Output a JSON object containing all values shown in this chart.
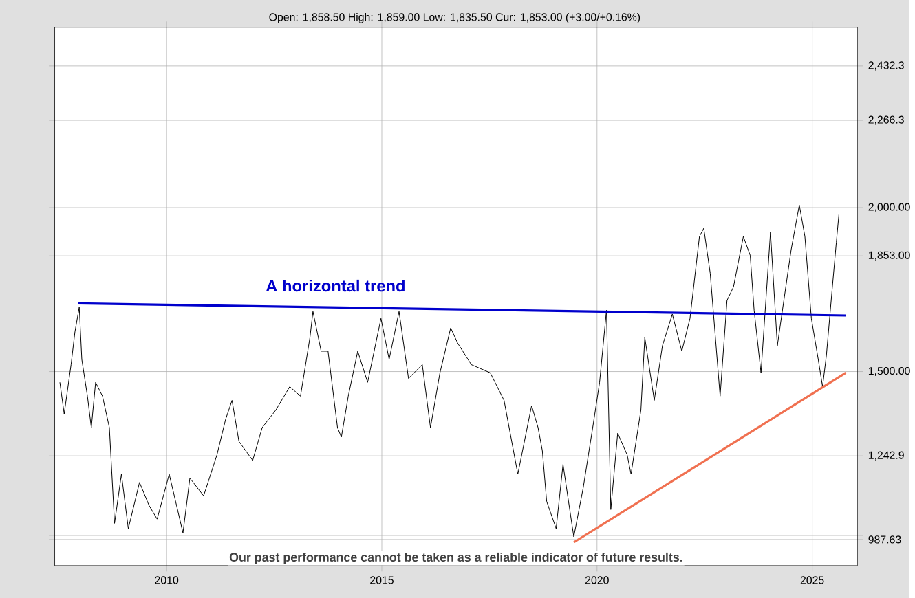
{
  "chart_data": {
    "type": "line",
    "subtitle": "Open: 1,858.50 High: 1,859.00 Low: 1,835.50 Cur: 1,853.00 (+3.00/+0.16%)",
    "xlim": [
      2007.4,
      2026.05
    ],
    "xticks": [
      2010,
      2015,
      2020,
      2025
    ],
    "ylim": [
      908,
      2550
    ],
    "yticks": [
      {
        "value": 987.63,
        "label": "987.63"
      },
      {
        "value": 1000,
        "label": null
      },
      {
        "value": 1242.9,
        "label": "1,242.9"
      },
      {
        "value": 1500,
        "label": "1,500.00"
      },
      {
        "value": 1853,
        "label": "1,853.00"
      },
      {
        "value": 2000,
        "label": "2,000.00"
      },
      {
        "value": 2266.3,
        "label": "2,266.3"
      },
      {
        "value": 2432.3,
        "label": "2,432.3"
      }
    ],
    "grid": true,
    "series": [
      {
        "color": "#000000",
        "x": [
          2007.52,
          2007.62,
          2007.78,
          2007.87,
          2007.97,
          2008.03,
          2008.16,
          2008.25,
          2008.35,
          2008.51,
          2008.67,
          2008.79,
          2008.95,
          2009.11,
          2009.37,
          2009.59,
          2009.78,
          2010.06,
          2010.38,
          2010.54,
          2010.86,
          2011.17,
          2011.37,
          2011.52,
          2011.68,
          2012.0,
          2012.22,
          2012.54,
          2012.86,
          2013.11,
          2013.33,
          2013.4,
          2013.59,
          2013.75,
          2013.97,
          2014.06,
          2014.22,
          2014.44,
          2014.67,
          2014.98,
          2015.17,
          2015.4,
          2015.62,
          2015.94,
          2016.13,
          2016.35,
          2016.6,
          2016.76,
          2017.08,
          2017.52,
          2017.84,
          2018.16,
          2018.48,
          2018.63,
          2018.73,
          2018.83,
          2019.05,
          2019.21,
          2019.46,
          2019.68,
          2019.9,
          2020.06,
          2020.22,
          2020.32,
          2020.48,
          2020.7,
          2020.79,
          2021.02,
          2021.11,
          2021.33,
          2021.52,
          2021.75,
          2021.97,
          2022.16,
          2022.38,
          2022.48,
          2022.63,
          2022.86,
          2023.02,
          2023.17,
          2023.4,
          2023.56,
          2023.65,
          2023.81,
          2024.03,
          2024.19,
          2024.51,
          2024.7,
          2024.83,
          2024.98,
          2025.14,
          2025.24,
          2025.33,
          2025.46,
          2025.56,
          2025.62
        ],
        "values": [
          1467,
          1371,
          1521,
          1621,
          1696,
          1537,
          1425,
          1329,
          1467,
          1425,
          1329,
          1037,
          1187,
          1021,
          1162,
          1092,
          1050,
          1187,
          1008,
          1175,
          1121,
          1246,
          1354,
          1412,
          1287,
          1229,
          1329,
          1383,
          1454,
          1425,
          1604,
          1683,
          1562,
          1562,
          1329,
          1300,
          1425,
          1562,
          1467,
          1662,
          1537,
          1683,
          1479,
          1521,
          1329,
          1496,
          1633,
          1587,
          1521,
          1496,
          1412,
          1187,
          1396,
          1329,
          1258,
          1104,
          1021,
          1217,
          996,
          1146,
          1329,
          1467,
          1687,
          1079,
          1312,
          1246,
          1187,
          1383,
          1604,
          1412,
          1579,
          1675,
          1562,
          1662,
          1912,
          1937,
          1800,
          1425,
          1717,
          1758,
          1912,
          1854,
          1687,
          1496,
          1925,
          1579,
          1871,
          2008,
          1912,
          1662,
          1537,
          1454,
          1550,
          1746,
          1894,
          1979
        ]
      },
      {
        "type": "line",
        "color": "#0000cc",
        "x": [
          2007.94,
          2025.78
        ],
        "values": [
          1708,
          1671
        ]
      },
      {
        "type": "line",
        "color": "#f07050",
        "x": [
          2019.46,
          2025.78
        ],
        "values": [
          979,
          1496
        ]
      }
    ],
    "annotations": [
      "A horizontal trend",
      "Our past performance cannot be taken as a reliable indicator of future results."
    ]
  }
}
